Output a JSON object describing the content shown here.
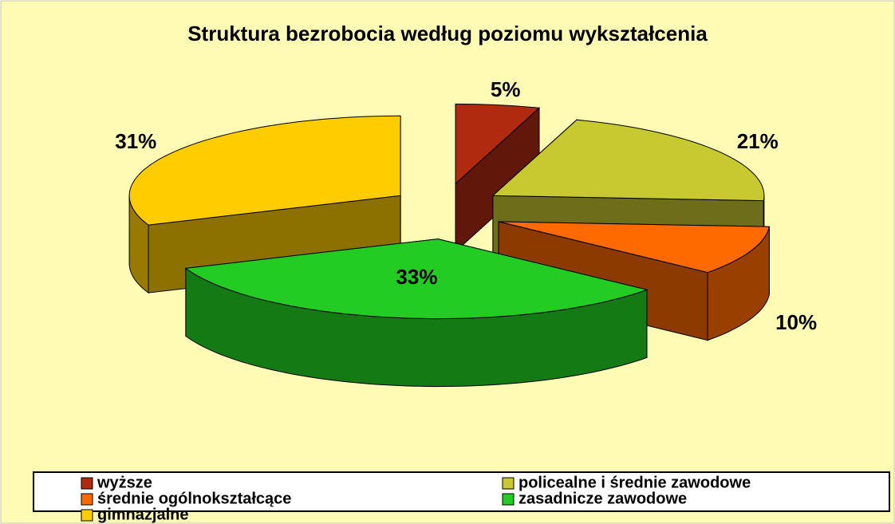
{
  "chart_data": {
    "type": "pie3d",
    "title": "Struktura bezrobocia według poziomu wykształcenia",
    "categories": [
      "wyższe",
      "policealne i średnie zawodowe",
      "średnie ogólnokształcące",
      "zasadnicze zawodowe",
      "gimnazjalne"
    ],
    "values": [
      5,
      21,
      10,
      33,
      31
    ],
    "value_labels": [
      "5%",
      "21%",
      "10%",
      "33%",
      "31%"
    ],
    "colors": [
      "#b02a10",
      "#c8c830",
      "#ff6a00",
      "#22cc22",
      "#ffcc00"
    ],
    "legend": "bottom"
  }
}
